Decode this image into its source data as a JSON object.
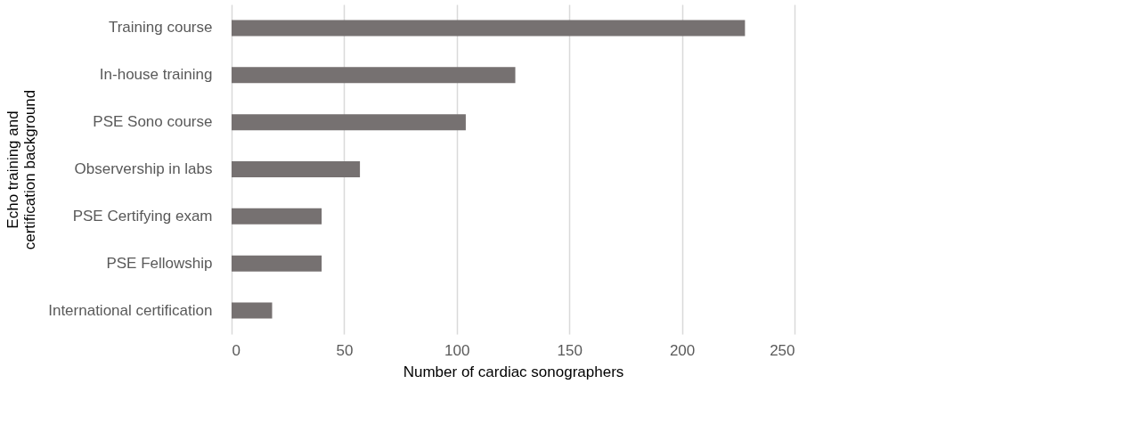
{
  "chart_data": {
    "type": "bar",
    "orientation": "horizontal",
    "categories": [
      "Training course",
      "In-house training",
      "PSE Sono course",
      "Observership in labs",
      "PSE Certifying exam",
      "PSE Fellowship",
      "International certification"
    ],
    "values": [
      228,
      126,
      104,
      57,
      40,
      40,
      18
    ],
    "color": "#767171",
    "xlabel": "Number of cardiac sonographers",
    "ylabel": "Echo training and\ncertification background",
    "xlim": [
      0,
      250
    ],
    "xticks": [
      0,
      50,
      100,
      150,
      200,
      250
    ],
    "grid": "x"
  }
}
